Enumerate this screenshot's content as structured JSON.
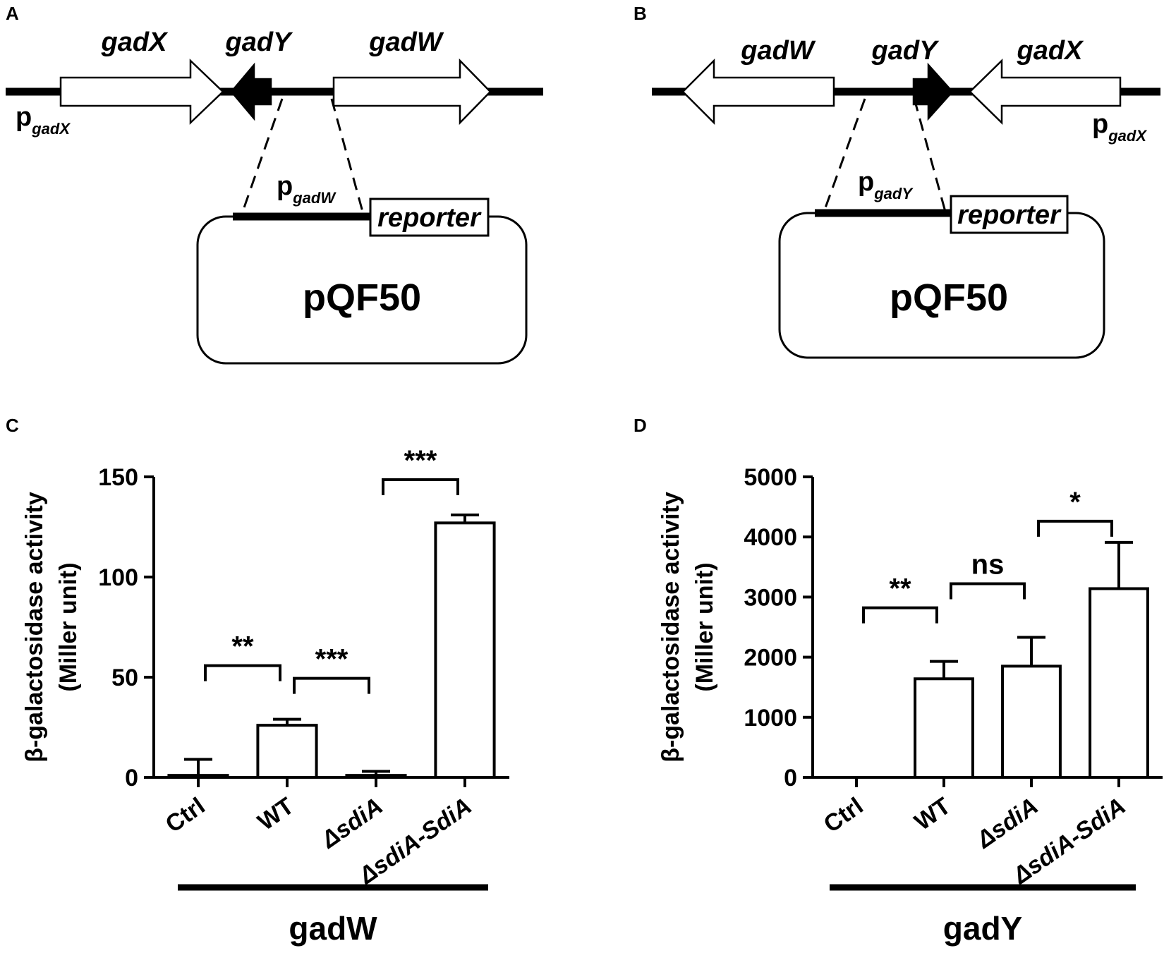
{
  "panels": {
    "A": {
      "letter": "A",
      "genes": [
        "gadX",
        "gadY",
        "gadW"
      ],
      "promoter_main": "p",
      "promoter_sub": "gadX",
      "insert_main": "p",
      "insert_sub": "gadW",
      "reporter": "reporter",
      "plasmid": "pQF50"
    },
    "B": {
      "letter": "B",
      "genes": [
        "gadW",
        "gadY",
        "gadX"
      ],
      "promoter_main": "p",
      "promoter_sub": "gadX",
      "insert_main": "p",
      "insert_sub": "gadY",
      "reporter": "reporter",
      "plasmid": "pQF50"
    },
    "C": {
      "letter": "C"
    },
    "D": {
      "letter": "D"
    }
  },
  "chart_data": [
    {
      "type": "bar",
      "panel": "C",
      "categories": [
        "Ctrl",
        "WT",
        "ΔsdiA",
        "ΔsdiA-SdiA"
      ],
      "values": [
        1,
        26,
        1,
        127
      ],
      "errors": [
        8,
        3,
        2,
        4
      ],
      "ylabel_line1": "β-galactosidase activity",
      "ylabel_line2": "(Miller unit)",
      "ylim": [
        0,
        150
      ],
      "yticks": [
        0,
        50,
        100,
        150
      ],
      "group_label": "gadW",
      "significance": [
        {
          "from": 0,
          "to": 1,
          "label": "**"
        },
        {
          "from": 1,
          "to": 2,
          "label": "***"
        },
        {
          "from": 2,
          "to": 3,
          "label": "***"
        }
      ]
    },
    {
      "type": "bar",
      "panel": "D",
      "categories": [
        "Ctrl",
        "WT",
        "ΔsdiA",
        "ΔsdiA-SdiA"
      ],
      "values": [
        0,
        1640,
        1850,
        3140
      ],
      "errors": [
        0,
        290,
        480,
        770
      ],
      "ylabel_line1": "β-galactosidase activity",
      "ylabel_line2": "(Miller unit)",
      "ylim": [
        0,
        5000
      ],
      "yticks": [
        0,
        1000,
        2000,
        3000,
        4000,
        5000
      ],
      "group_label": "gadY",
      "significance": [
        {
          "from": 0,
          "to": 1,
          "label": "**"
        },
        {
          "from": 1,
          "to": 2,
          "label": "ns"
        },
        {
          "from": 2,
          "to": 3,
          "label": "*"
        }
      ]
    }
  ]
}
